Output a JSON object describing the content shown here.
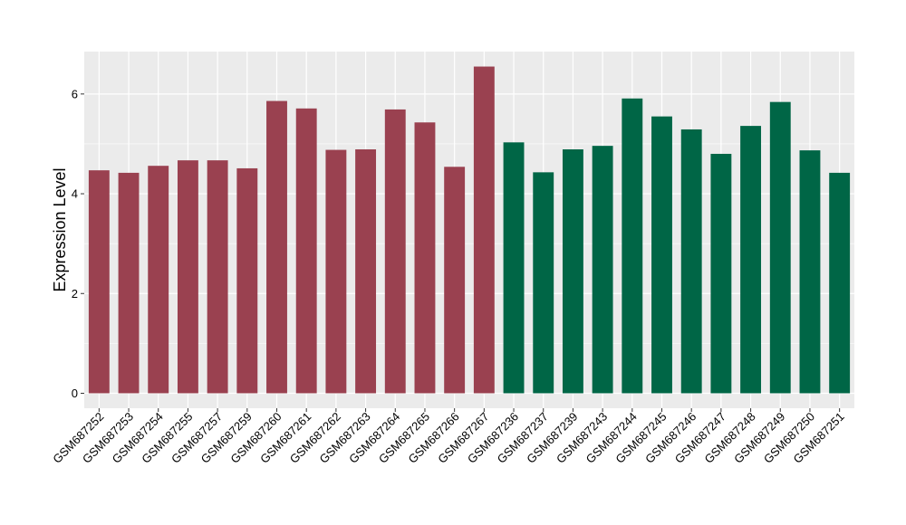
{
  "chart_data": {
    "type": "bar",
    "title": "",
    "xlabel": "",
    "ylabel": "Expression Level",
    "ylim": [
      -0.3,
      6.85
    ],
    "yticks": [
      0,
      2,
      4,
      6
    ],
    "ytick_labels": [
      "0",
      "2",
      "4",
      "6"
    ],
    "grid": true,
    "legend": "none",
    "categories": [
      "GSM687252",
      "GSM687253",
      "GSM687254",
      "GSM687255",
      "GSM687257",
      "GSM687259",
      "GSM687260",
      "GSM687261",
      "GSM687262",
      "GSM687263",
      "GSM687264",
      "GSM687265",
      "GSM687266",
      "GSM687267",
      "GSM687236",
      "GSM687237",
      "GSM687239",
      "GSM687243",
      "GSM687244",
      "GSM687245",
      "GSM687246",
      "GSM687247",
      "GSM687248",
      "GSM687249",
      "GSM687250",
      "GSM687251"
    ],
    "values": [
      4.47,
      4.42,
      4.56,
      4.67,
      4.67,
      4.51,
      5.86,
      5.71,
      4.88,
      4.89,
      5.69,
      5.43,
      4.54,
      6.55,
      5.03,
      4.43,
      4.89,
      4.96,
      5.91,
      5.55,
      5.29,
      4.8,
      5.36,
      5.84,
      4.87,
      4.42
    ],
    "bar_colors": [
      "#9a4150",
      "#9a4150",
      "#9a4150",
      "#9a4150",
      "#9a4150",
      "#9a4150",
      "#9a4150",
      "#9a4150",
      "#9a4150",
      "#9a4150",
      "#9a4150",
      "#9a4150",
      "#9a4150",
      "#9a4150",
      "#006646",
      "#006646",
      "#006646",
      "#006646",
      "#006646",
      "#006646",
      "#006646",
      "#006646",
      "#006646",
      "#006646",
      "#006646",
      "#006646"
    ],
    "panel_background": "#ebebeb",
    "grid_color": "#ffffff"
  }
}
